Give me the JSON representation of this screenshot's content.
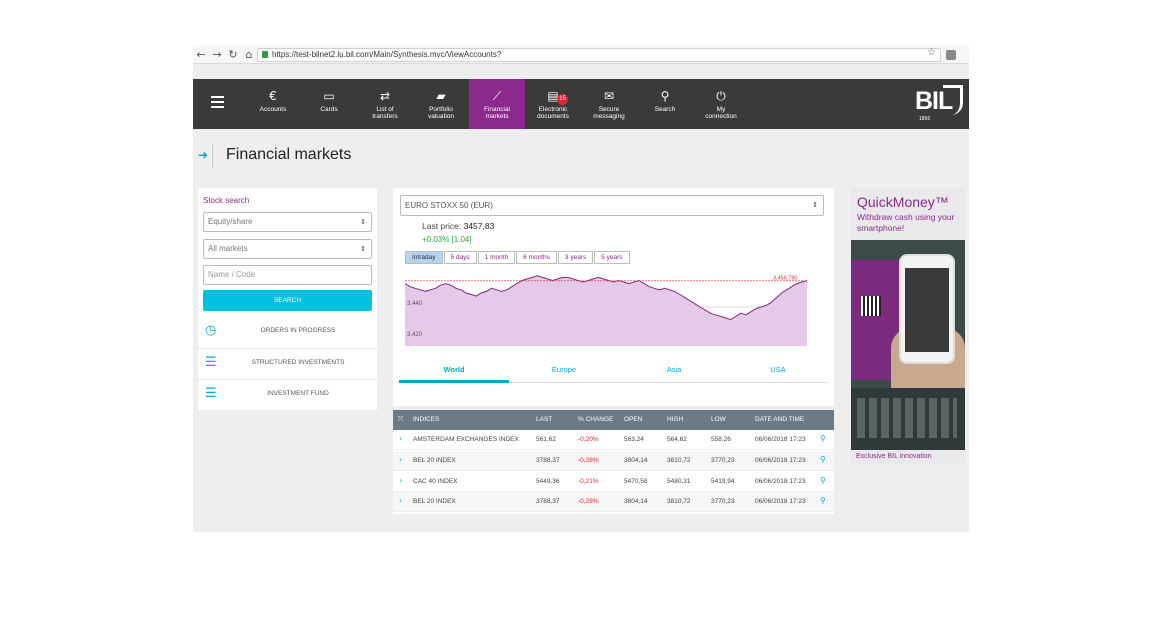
{
  "browser": {
    "url": "https://test-bilnet2.lu.bil.com/Main/Synthesis.mvc/ViewAccounts?"
  },
  "nav": {
    "items": [
      {
        "label": "Accounts",
        "icon": "euro-icon"
      },
      {
        "label": "Cards",
        "icon": "card-icon"
      },
      {
        "label": "List of\ntransfers",
        "icon": "transfer-icon"
      },
      {
        "label": "Portfolio\nvaluation",
        "icon": "folder-icon"
      },
      {
        "label": "Financial\nmarkets",
        "icon": "chart-icon"
      },
      {
        "label": "Electronic\ndocuments",
        "icon": "document-icon",
        "badge": "15"
      },
      {
        "label": "Secure\nmessaging",
        "icon": "mail-icon"
      },
      {
        "label": "Search",
        "icon": "search-icon"
      },
      {
        "label": "My\nconnection",
        "icon": "power-icon"
      }
    ],
    "active_item": "Financial\nmarkets",
    "logo_text": "BIL",
    "logo_year": "1856"
  },
  "page": {
    "title": "Financial markets"
  },
  "stock_search": {
    "title": "Stock search",
    "type_select": "Equity/share",
    "market_select": "All markets",
    "name_placeholder": "Name / Code",
    "search_button": "SEARCH",
    "links": [
      "ORDERS IN PROGRESS",
      "STRUCTURED INVESTMENTS",
      "INVESTMENT FUND"
    ]
  },
  "chart_panel": {
    "ticker": "EURO STOXX 50 (EUR)",
    "last_price_label": "Last price:",
    "last_price_value": "3457,83",
    "change": "+0.03% [1.04]",
    "periods": [
      "Intraday",
      "5 days",
      "1 month",
      "6 months",
      "3 years",
      "5 years"
    ],
    "active_period": "Intraday",
    "region_tabs": [
      "World",
      "Europe",
      "Asia",
      "USA"
    ],
    "active_region": "World"
  },
  "chart_data": {
    "type": "area",
    "title": "",
    "xlabel": "",
    "ylabel": "",
    "ylim": [
      3415,
      3465
    ],
    "y_ticks": [
      "3,440",
      "3,420"
    ],
    "reference_label": "3,456.790",
    "reference_value": 3456.79,
    "series": [
      {
        "values": [
          3455,
          3453,
          3452,
          3451,
          3450,
          3451,
          3452,
          3454,
          3455,
          3454,
          3452,
          3451,
          3449,
          3448,
          3447,
          3449,
          3450,
          3452,
          3451,
          3450,
          3451,
          3453,
          3455,
          3457,
          3458,
          3459,
          3460,
          3459,
          3458,
          3457,
          3458,
          3459,
          3459,
          3458,
          3457,
          3456,
          3457,
          3458,
          3459,
          3458,
          3457,
          3456,
          3457,
          3456,
          3455,
          3456,
          3457,
          3455,
          3453,
          3452,
          3451,
          3452,
          3451,
          3450,
          3448,
          3446,
          3444,
          3442,
          3440,
          3438,
          3436,
          3435,
          3434,
          3433,
          3432,
          3434,
          3436,
          3435,
          3437,
          3439,
          3440,
          3441,
          3443,
          3446,
          3449,
          3451,
          3453,
          3455,
          3456,
          3457
        ]
      }
    ],
    "grid": true
  },
  "indices_table": {
    "columns": [
      "INDICES",
      "LAST",
      "% CHANGE",
      "OPEN",
      "HIGH",
      "LOW",
      "DATE AND TIME"
    ],
    "rows": [
      [
        "AMSTERDAM EXCHANGES INDEX",
        "561,62",
        "-0,20%",
        "563,24",
        "564,62",
        "558,26",
        "06/06/2018 17:23"
      ],
      [
        "BEL 20 INDEX",
        "3788,37",
        "-0,28%",
        "3804,14",
        "3810,72",
        "3770,23",
        "06/06/2018 17:23"
      ],
      [
        "CAC 40 INDEX",
        "5449,36",
        "-0,21%",
        "5470,58",
        "5480,31",
        "5419,94",
        "06/06/2018 17:23"
      ],
      [
        "BEL 20 INDEX",
        "3788,37",
        "-0,28%",
        "3804,14",
        "3810,72",
        "3770,23",
        "06/06/2018 17:23"
      ]
    ]
  },
  "ad": {
    "title": "QuickMoney™",
    "subtitle": "Withdraw cash using your smartphone!",
    "footer": "Exclusive BIL innovation"
  },
  "colors": {
    "accent": "#8b2a8c",
    "cyan": "#00a9c9",
    "nav_bg": "#3a3a3a",
    "negative": "#e0262e",
    "positive": "#2ea343"
  }
}
